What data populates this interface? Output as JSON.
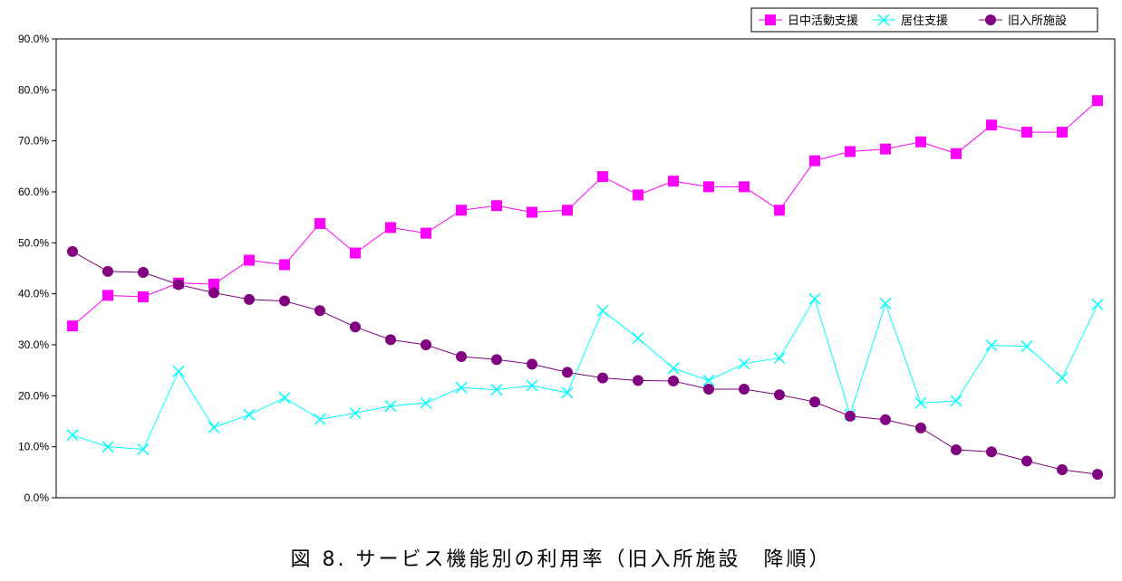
{
  "caption": "図 8.  サービス機能別の利用率（旧入所施設　降順）",
  "chart_data": {
    "type": "line",
    "x": [
      1,
      2,
      3,
      4,
      5,
      6,
      7,
      8,
      9,
      10,
      11,
      12,
      13,
      14,
      15,
      16,
      17,
      18,
      19,
      20,
      21,
      22,
      23,
      24,
      25,
      26,
      27,
      28,
      29,
      30
    ],
    "ylim": [
      0,
      90
    ],
    "ytick_labels": [
      "0.0%",
      "10.0%",
      "20.0%",
      "30.0%",
      "40.0%",
      "50.0%",
      "60.0%",
      "70.0%",
      "80.0%",
      "90.0%"
    ],
    "grid": false,
    "legend_position": "top-right",
    "series": [
      {
        "name": "日中活動支援",
        "color": "#ff00ff",
        "marker": "square",
        "values": [
          33.7,
          39.7,
          39.4,
          42.1,
          41.9,
          46.6,
          45.7,
          53.8,
          48.0,
          53.0,
          51.9,
          56.4,
          57.3,
          56.0,
          56.4,
          63.0,
          59.4,
          62.1,
          61.0,
          61.0,
          56.4,
          66.1,
          67.9,
          68.4,
          69.8,
          67.5,
          73.1,
          71.7,
          71.7,
          77.9
        ]
      },
      {
        "name": "居住支援",
        "color": "#00ffff",
        "marker": "x",
        "values": [
          12.3,
          10.0,
          9.5,
          24.8,
          13.8,
          16.3,
          19.6,
          15.4,
          16.6,
          18.0,
          18.6,
          21.6,
          21.2,
          22.0,
          20.6,
          36.7,
          31.3,
          25.4,
          23.0,
          26.3,
          27.4,
          39.0,
          16.3,
          38.1,
          18.6,
          19.0,
          29.9,
          29.7,
          23.5,
          37.9
        ]
      },
      {
        "name": "旧入所施設",
        "color": "#800080",
        "marker": "circle",
        "values": [
          48.3,
          44.4,
          44.2,
          41.8,
          40.2,
          38.9,
          38.6,
          36.7,
          33.5,
          31.0,
          30.0,
          27.7,
          27.1,
          26.2,
          24.6,
          23.5,
          23.0,
          22.9,
          21.3,
          21.3,
          20.2,
          18.8,
          16.0,
          15.3,
          13.7,
          9.4,
          9.0,
          7.2,
          5.5,
          4.6
        ]
      }
    ]
  }
}
